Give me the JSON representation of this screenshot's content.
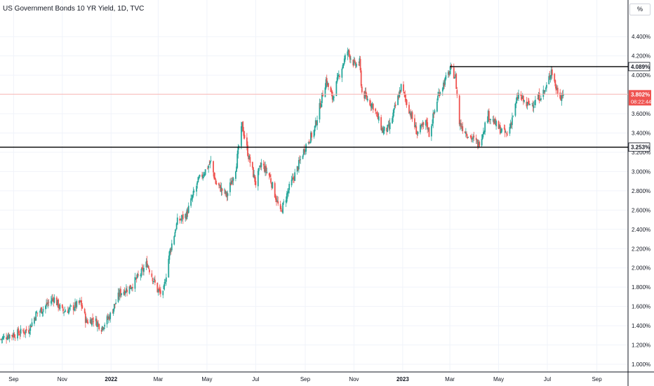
{
  "title": "US Government Bonds 10 YR Yield, 1D, TVC",
  "unit_button": "%",
  "colors": {
    "up": "#26a69a",
    "down": "#ef5350",
    "line": "#000000",
    "last": "#ef5350",
    "grid": "#f0f3fa"
  },
  "chart_data": {
    "type": "candlestick",
    "title": "US Government Bonds 10 YR Yield, 1D, TVC",
    "xlabel": "",
    "ylabel": "",
    "ylim": [
      0.92,
      4.62
    ],
    "y_ticks": [
      {
        "value": 1.0,
        "label": "1.000%"
      },
      {
        "value": 1.2,
        "label": "1.200%"
      },
      {
        "value": 1.4,
        "label": "1.400%"
      },
      {
        "value": 1.6,
        "label": "1.600%"
      },
      {
        "value": 1.8,
        "label": "1.800%"
      },
      {
        "value": 2.0,
        "label": "2.000%"
      },
      {
        "value": 2.2,
        "label": "2.200%"
      },
      {
        "value": 2.4,
        "label": "2.400%"
      },
      {
        "value": 2.6,
        "label": "2.600%"
      },
      {
        "value": 2.8,
        "label": "2.800%"
      },
      {
        "value": 3.0,
        "label": "3.000%"
      },
      {
        "value": 3.2,
        "label": "3.200%"
      },
      {
        "value": 3.4,
        "label": "3.400%"
      },
      {
        "value": 3.6,
        "label": "3.600%"
      },
      {
        "value": 4.0,
        "label": "4.000%"
      },
      {
        "value": 4.2,
        "label": "4.200%"
      },
      {
        "value": 4.4,
        "label": "4.400%"
      }
    ],
    "x_ticks": [
      {
        "date": "2021-09-01",
        "label": "Sep",
        "bold": false
      },
      {
        "date": "2021-11-01",
        "label": "Nov",
        "bold": false
      },
      {
        "date": "2022-01-01",
        "label": "2022",
        "bold": true
      },
      {
        "date": "2022-03-01",
        "label": "Mar",
        "bold": false
      },
      {
        "date": "2022-05-01",
        "label": "May",
        "bold": false
      },
      {
        "date": "2022-07-01",
        "label": "Jul",
        "bold": false
      },
      {
        "date": "2022-09-01",
        "label": "Sep",
        "bold": false
      },
      {
        "date": "2022-11-01",
        "label": "Nov",
        "bold": false
      },
      {
        "date": "2023-01-01",
        "label": "2023",
        "bold": true
      },
      {
        "date": "2023-03-01",
        "label": "Mar",
        "bold": false
      },
      {
        "date": "2023-05-01",
        "label": "May",
        "bold": false
      },
      {
        "date": "2023-07-01",
        "label": "Jul",
        "bold": false
      },
      {
        "date": "2023-09-01",
        "label": "Sep",
        "bold": false
      }
    ],
    "x_range": [
      "2021-08-15",
      "2023-10-10"
    ],
    "close_path": [
      [
        "2021-08-16",
        1.26
      ],
      [
        "2021-08-25",
        1.3
      ],
      [
        "2021-09-01",
        1.31
      ],
      [
        "2021-09-10",
        1.33
      ],
      [
        "2021-09-20",
        1.36
      ],
      [
        "2021-09-29",
        1.52
      ],
      [
        "2021-10-08",
        1.58
      ],
      [
        "2021-10-21",
        1.69
      ],
      [
        "2021-11-01",
        1.55
      ],
      [
        "2021-11-10",
        1.57
      ],
      [
        "2021-11-24",
        1.64
      ],
      [
        "2021-12-01",
        1.44
      ],
      [
        "2021-12-10",
        1.47
      ],
      [
        "2021-12-20",
        1.38
      ],
      [
        "2021-12-31",
        1.51
      ],
      [
        "2022-01-12",
        1.74
      ],
      [
        "2022-01-25",
        1.8
      ],
      [
        "2022-02-08",
        1.95
      ],
      [
        "2022-02-15",
        2.05
      ],
      [
        "2022-02-28",
        1.77
      ],
      [
        "2022-03-07",
        1.72
      ],
      [
        "2022-03-15",
        2.15
      ],
      [
        "2022-03-25",
        2.48
      ],
      [
        "2022-04-05",
        2.55
      ],
      [
        "2022-04-20",
        2.9
      ],
      [
        "2022-05-06",
        3.1
      ],
      [
        "2022-05-12",
        2.88
      ],
      [
        "2022-05-26",
        2.75
      ],
      [
        "2022-06-06",
        3.04
      ],
      [
        "2022-06-14",
        3.48
      ],
      [
        "2022-06-22",
        3.16
      ],
      [
        "2022-07-01",
        2.88
      ],
      [
        "2022-07-08",
        3.08
      ],
      [
        "2022-07-18",
        2.96
      ],
      [
        "2022-08-01",
        2.57
      ],
      [
        "2022-08-12",
        2.83
      ],
      [
        "2022-08-22",
        3.03
      ],
      [
        "2022-09-01",
        3.26
      ],
      [
        "2022-09-12",
        3.42
      ],
      [
        "2022-09-27",
        3.95
      ],
      [
        "2022-10-05",
        3.76
      ],
      [
        "2022-10-14",
        4.02
      ],
      [
        "2022-10-24",
        4.25
      ],
      [
        "2022-11-02",
        4.1
      ],
      [
        "2022-11-08",
        4.13
      ],
      [
        "2022-11-11",
        3.82
      ],
      [
        "2022-11-25",
        3.68
      ],
      [
        "2022-12-07",
        3.42
      ],
      [
        "2022-12-15",
        3.45
      ],
      [
        "2022-12-30",
        3.88
      ],
      [
        "2023-01-10",
        3.62
      ],
      [
        "2023-01-19",
        3.4
      ],
      [
        "2023-01-31",
        3.51
      ],
      [
        "2023-02-03",
        3.39
      ],
      [
        "2023-02-15",
        3.81
      ],
      [
        "2023-03-02",
        4.06
      ],
      [
        "2023-03-08",
        3.98
      ],
      [
        "2023-03-13",
        3.5
      ],
      [
        "2023-03-24",
        3.38
      ],
      [
        "2023-04-06",
        3.28
      ],
      [
        "2023-04-18",
        3.59
      ],
      [
        "2023-05-01",
        3.45
      ],
      [
        "2023-05-12",
        3.38
      ],
      [
        "2023-05-26",
        3.8
      ],
      [
        "2023-06-05",
        3.69
      ],
      [
        "2023-06-15",
        3.72
      ],
      [
        "2023-06-29",
        3.85
      ],
      [
        "2023-07-06",
        4.06
      ],
      [
        "2023-07-12",
        3.86
      ],
      [
        "2023-07-18",
        3.78
      ],
      [
        "2023-07-21",
        3.82
      ]
    ],
    "horizontal_lines": [
      {
        "value": 4.089,
        "label": "4.089%",
        "from": "2023-03-01"
      },
      {
        "value": 3.253,
        "label": "3.253%",
        "from": "2021-08-15"
      }
    ],
    "last_price": {
      "value": 3.802,
      "label": "3.802%",
      "countdown": "08:22:44"
    }
  }
}
